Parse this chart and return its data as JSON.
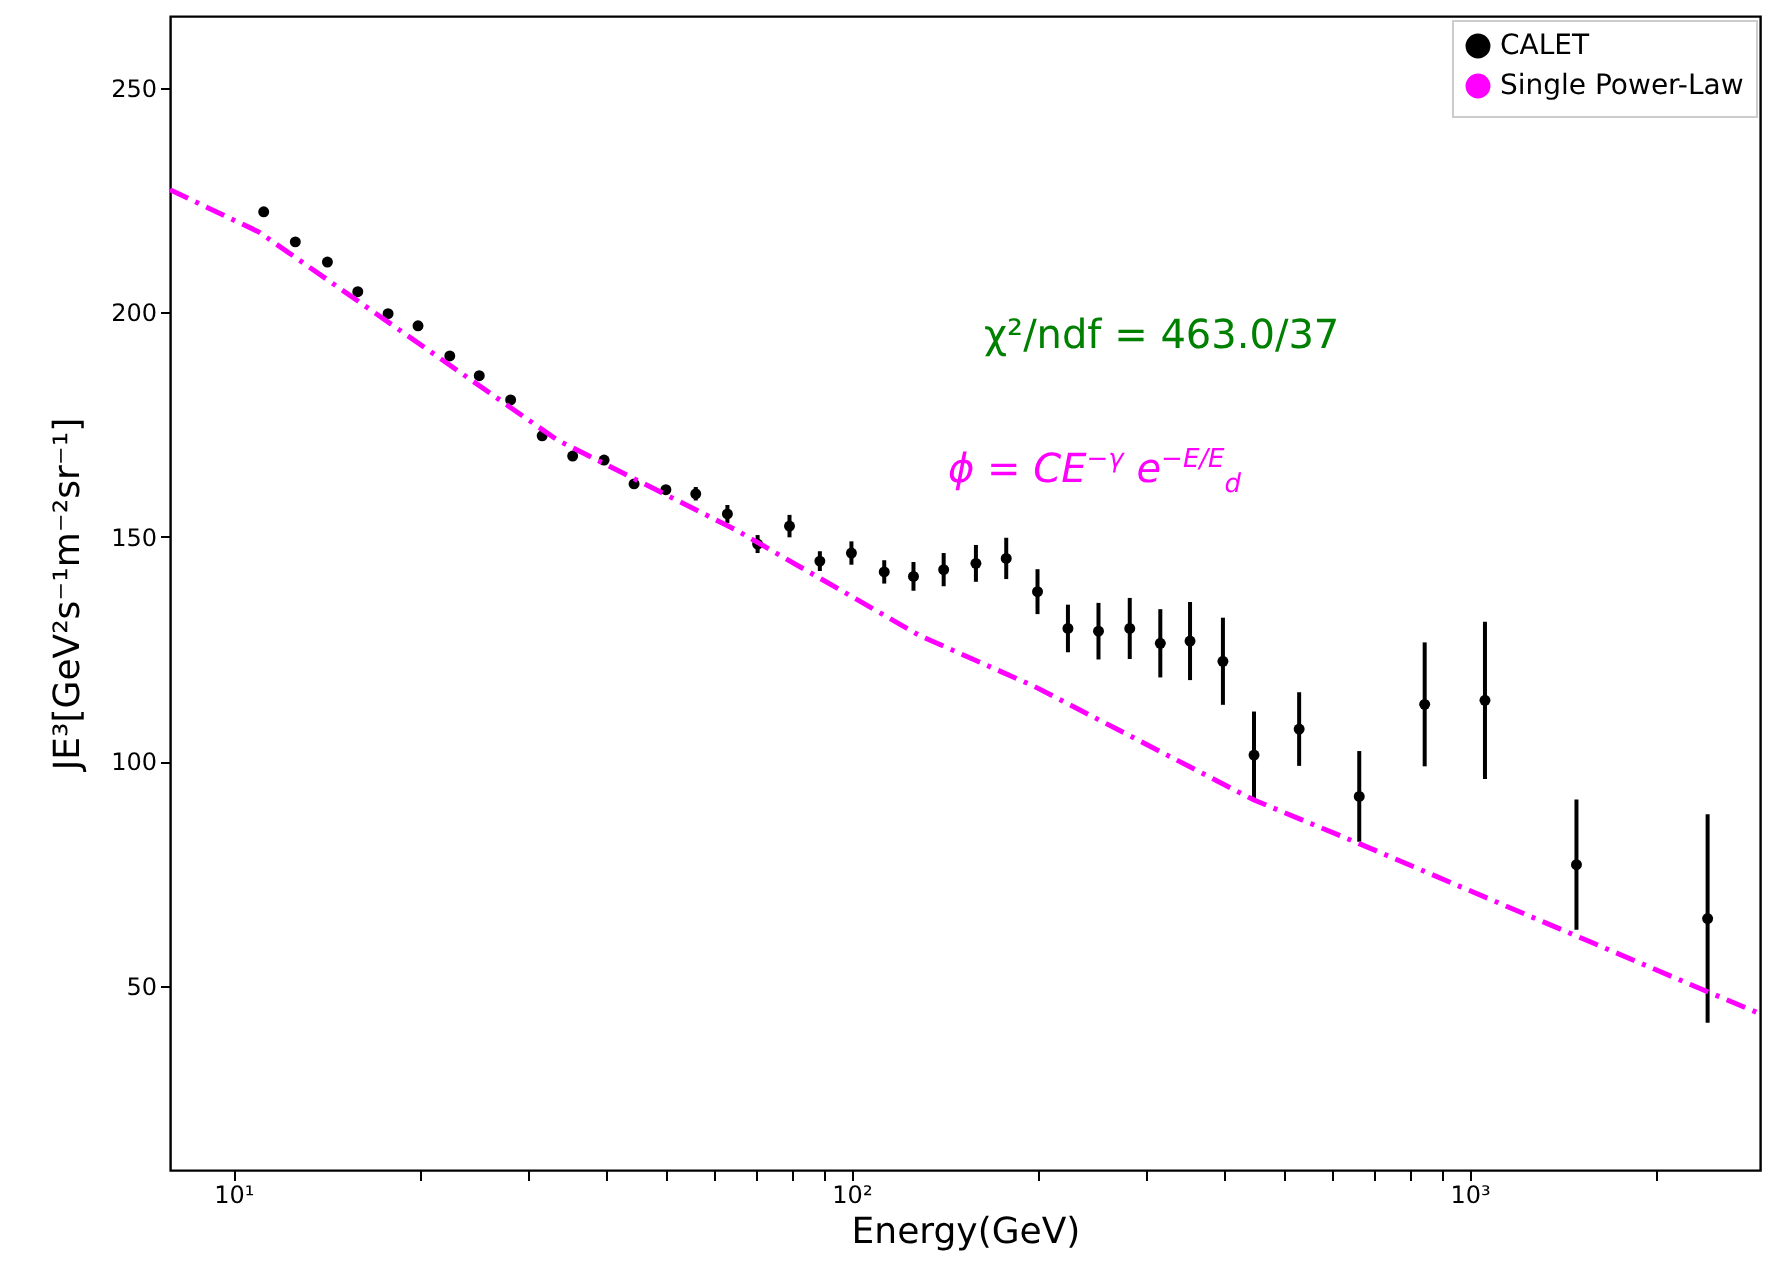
{
  "chart_data": {
    "type": "scatter",
    "xlabel": "Energy(GeV)",
    "ylabel": "JE³[GeV²s⁻¹m⁻²sr⁻¹]",
    "log": "x",
    "xlim": [
      7.9,
      2950
    ],
    "ylim": [
      9,
      266
    ],
    "xticks": [
      {
        "value": 10,
        "label": "10¹"
      },
      {
        "value": 20,
        "label": null
      },
      {
        "value": 30,
        "label": null
      },
      {
        "value": 40,
        "label": null
      },
      {
        "value": 50,
        "label": null
      },
      {
        "value": 60,
        "label": null
      },
      {
        "value": 70,
        "label": null
      },
      {
        "value": 80,
        "label": null
      },
      {
        "value": 90,
        "label": null
      },
      {
        "value": 100,
        "label": "10²"
      },
      {
        "value": 200,
        "label": null
      },
      {
        "value": 300,
        "label": null
      },
      {
        "value": 400,
        "label": null
      },
      {
        "value": 500,
        "label": null
      },
      {
        "value": 600,
        "label": null
      },
      {
        "value": 700,
        "label": null
      },
      {
        "value": 800,
        "label": null
      },
      {
        "value": 900,
        "label": null
      },
      {
        "value": 1000,
        "label": "10³"
      },
      {
        "value": 2000,
        "label": null
      }
    ],
    "yticks": [
      50,
      100,
      150,
      200,
      250
    ],
    "grid": false,
    "legend": "top right",
    "annotations": [
      "χ²/ndf = 463.0/37",
      "ϕ = CE$^{−γ}$ e$^{−E/E}$$_{d}$"
    ],
    "series": [
      {
        "name": "CALET",
        "color": "#000000",
        "marker": "circle",
        "x": [
          11.2,
          12.6,
          14.2,
          15.9,
          17.8,
          19.9,
          22.4,
          25.0,
          28.1,
          31.6,
          35.4,
          39.8,
          44.5,
          50.1,
          56.0,
          63.0,
          70.5,
          79.4,
          88.9,
          100,
          113,
          126,
          141,
          159,
          178,
          200,
          224,
          251,
          282,
          316,
          353,
          399,
          448,
          530,
          663,
          846,
          1059,
          1489,
          2427
        ],
        "values": [
          222.4,
          215.7,
          211.2,
          204.6,
          199.7,
          197.0,
          190.3,
          185.9,
          180.5,
          172.5,
          168.0,
          167.1,
          161.8,
          160.5,
          159.6,
          155.1,
          148.4,
          152.4,
          144.6,
          146.4,
          142.2,
          141.2,
          142.7,
          144.1,
          145.2,
          137.8,
          129.6,
          129.0,
          129.6,
          126.3,
          126.8,
          122.3,
          101.4,
          107.2,
          92.2,
          112.7,
          113.6,
          77.0,
          65.0
        ],
        "errors": [
          null,
          null,
          null,
          null,
          null,
          null,
          null,
          null,
          null,
          null,
          null,
          null,
          null,
          null,
          1.5,
          2,
          2,
          2.5,
          2.2,
          2.6,
          2.6,
          3.2,
          3.7,
          4.1,
          4.6,
          5.0,
          5.3,
          6.3,
          6.8,
          7.6,
          8.7,
          9.7,
          9.7,
          8.2,
          10.1,
          13.8,
          17.5,
          14.5,
          23.2
        ]
      },
      {
        "name": "Single Power-Law",
        "type": "line",
        "color": "#ff00ff",
        "line_style": "dashdot",
        "x": [
          7.9,
          11,
          33.4,
          64.9,
          129,
          197,
          448,
          660,
          2427,
          2950
        ],
        "values": [
          227.3,
          217.9,
          171.6,
          151.6,
          128,
          116.8,
          91.4,
          81.8,
          48.7,
          43.8
        ]
      }
    ]
  }
}
